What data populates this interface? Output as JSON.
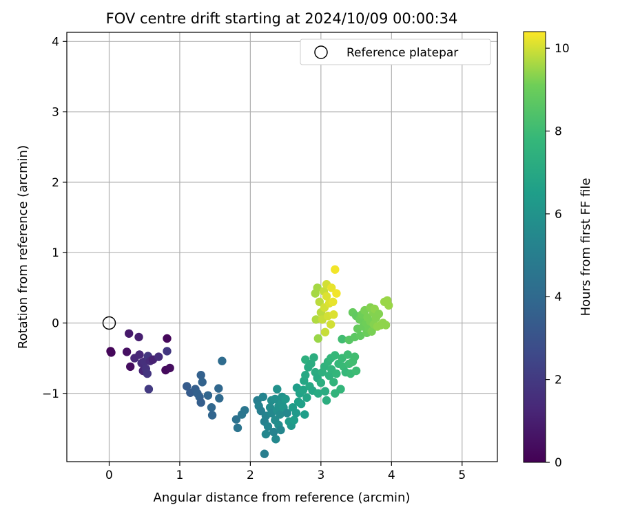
{
  "chart_data": {
    "type": "scatter",
    "title": "FOV centre drift starting at 2024/10/09 00:00:34",
    "xlabel": "Angular distance from reference (arcmin)",
    "ylabel": "Rotation from reference (arcmin)",
    "xlim": [
      -0.6,
      5.5
    ],
    "ylim": [
      -1.97,
      4.13
    ],
    "xticks": [
      0,
      1,
      2,
      3,
      4,
      5
    ],
    "yticks": [
      -1,
      0,
      1,
      2,
      3,
      4
    ],
    "grid": true,
    "legend": {
      "position": "top-right",
      "entries": [
        "Reference platepar"
      ]
    },
    "reference_point": {
      "x": 0,
      "y": 0,
      "marker": "open-circle",
      "label": "Reference platepar"
    },
    "colorbar": {
      "label": "Hours from first FF file",
      "colormap": "viridis",
      "range": [
        0,
        10.4
      ],
      "ticks": [
        0,
        2,
        4,
        6,
        8,
        10
      ]
    },
    "series": [
      {
        "columns": [
          "x",
          "y",
          "hours"
        ],
        "points": [
          [
            0.02,
            -0.4,
            0.1
          ],
          [
            0.03,
            -0.42,
            0.2
          ],
          [
            0.25,
            -0.41,
            0.5
          ],
          [
            0.28,
            -0.15,
            0.8
          ],
          [
            0.3,
            -0.62,
            0.4
          ],
          [
            0.42,
            -0.2,
            1.0
          ],
          [
            0.43,
            -0.45,
            1.3
          ],
          [
            0.46,
            -0.57,
            1.5
          ],
          [
            0.48,
            -0.68,
            1.2
          ],
          [
            0.5,
            -0.55,
            1.6
          ],
          [
            0.52,
            -0.65,
            1.7
          ],
          [
            0.54,
            -0.72,
            1.8
          ],
          [
            0.55,
            -0.47,
            1.9
          ],
          [
            0.56,
            -0.94,
            2.0
          ],
          [
            0.58,
            -0.54,
            1.4
          ],
          [
            0.62,
            -0.52,
            1.1
          ],
          [
            0.7,
            -0.48,
            1.5
          ],
          [
            0.8,
            -0.67,
            0.3
          ],
          [
            0.82,
            -0.22,
            0.2
          ],
          [
            0.82,
            -0.4,
            1.9
          ],
          [
            0.86,
            -0.64,
            0.4
          ],
          [
            0.36,
            -0.5,
            1.3
          ],
          [
            1.1,
            -0.9,
            3.4
          ],
          [
            1.15,
            -0.99,
            3.4
          ],
          [
            1.22,
            -0.94,
            3.5
          ],
          [
            1.25,
            -1.0,
            3.6
          ],
          [
            1.28,
            -1.05,
            3.6
          ],
          [
            1.3,
            -1.13,
            3.5
          ],
          [
            1.3,
            -0.74,
            3.6
          ],
          [
            1.32,
            -0.84,
            3.7
          ],
          [
            1.4,
            -1.03,
            3.8
          ],
          [
            1.45,
            -1.2,
            3.9
          ],
          [
            1.46,
            -1.31,
            3.8
          ],
          [
            1.55,
            -0.93,
            3.9
          ],
          [
            1.56,
            -1.07,
            4.0
          ],
          [
            1.6,
            -0.54,
            4.1
          ],
          [
            1.8,
            -1.37,
            4.4
          ],
          [
            1.82,
            -1.49,
            4.5
          ],
          [
            1.88,
            -1.3,
            4.6
          ],
          [
            1.92,
            -1.24,
            4.6
          ],
          [
            2.1,
            -1.1,
            5.0
          ],
          [
            2.12,
            -1.18,
            5.2
          ],
          [
            2.15,
            -1.25,
            5.0
          ],
          [
            2.18,
            -1.05,
            5.3
          ],
          [
            2.2,
            -1.86,
            5.0
          ],
          [
            2.2,
            -1.4,
            5.1
          ],
          [
            2.22,
            -1.32,
            5.2
          ],
          [
            2.22,
            -1.58,
            5.4
          ],
          [
            2.25,
            -1.47,
            5.3
          ],
          [
            2.28,
            -1.2,
            5.6
          ],
          [
            2.3,
            -1.28,
            5.5
          ],
          [
            2.3,
            -1.1,
            5.7
          ],
          [
            2.33,
            -1.55,
            5.2
          ],
          [
            2.35,
            -1.08,
            5.8
          ],
          [
            2.35,
            -1.38,
            5.6
          ],
          [
            2.36,
            -1.65,
            5.5
          ],
          [
            2.38,
            -0.94,
            5.9
          ],
          [
            2.38,
            -1.24,
            5.8
          ],
          [
            2.4,
            -1.45,
            5.7
          ],
          [
            2.4,
            -1.18,
            5.9
          ],
          [
            2.42,
            -1.3,
            5.6
          ],
          [
            2.43,
            -1.52,
            5.4
          ],
          [
            2.45,
            -1.13,
            6.0
          ],
          [
            2.45,
            -1.05,
            5.9
          ],
          [
            2.47,
            -1.2,
            6.1
          ],
          [
            2.5,
            -1.08,
            6.2
          ],
          [
            2.52,
            -1.28,
            5.5
          ],
          [
            2.55,
            -1.4,
            6.3
          ],
          [
            2.58,
            -1.46,
            6.2
          ],
          [
            2.6,
            -1.2,
            6.4
          ],
          [
            2.62,
            -1.38,
            6.5
          ],
          [
            2.65,
            -1.28,
            6.3
          ],
          [
            2.66,
            -0.92,
            6.5
          ],
          [
            2.68,
            -1.12,
            6.6
          ],
          [
            2.7,
            -1.0,
            6.7
          ],
          [
            2.72,
            -1.15,
            6.6
          ],
          [
            2.75,
            -0.95,
            6.8
          ],
          [
            2.76,
            -0.82,
            6.9
          ],
          [
            2.77,
            -1.3,
            6.5
          ],
          [
            2.78,
            -0.74,
            7.0
          ],
          [
            2.78,
            -0.52,
            7.4
          ],
          [
            2.8,
            -1.06,
            6.8
          ],
          [
            2.82,
            -0.63,
            7.1
          ],
          [
            2.84,
            -0.9,
            7.0
          ],
          [
            2.86,
            -0.58,
            7.2
          ],
          [
            2.88,
            -0.96,
            6.9
          ],
          [
            2.9,
            -0.49,
            7.3
          ],
          [
            2.92,
            -0.7,
            7.2
          ],
          [
            2.95,
            -0.78,
            7.1
          ],
          [
            2.96,
            -1.0,
            7.1
          ],
          [
            3.0,
            -0.85,
            7.3
          ],
          [
            3.02,
            -0.7,
            7.4
          ],
          [
            3.05,
            -0.62,
            7.5
          ],
          [
            3.06,
            -0.97,
            7.2
          ],
          [
            3.08,
            -1.1,
            7.3
          ],
          [
            3.1,
            -0.55,
            7.6
          ],
          [
            3.12,
            -0.75,
            7.5
          ],
          [
            3.14,
            -0.5,
            7.7
          ],
          [
            3.15,
            -0.66,
            7.6
          ],
          [
            3.18,
            -0.84,
            7.6
          ],
          [
            3.2,
            -0.46,
            7.8
          ],
          [
            3.22,
            -0.72,
            7.7
          ],
          [
            3.25,
            -0.58,
            7.8
          ],
          [
            3.28,
            -0.94,
            7.7
          ],
          [
            3.3,
            -0.5,
            7.9
          ],
          [
            3.3,
            -0.23,
            8.1
          ],
          [
            3.32,
            -0.62,
            7.9
          ],
          [
            3.35,
            -0.7,
            7.8
          ],
          [
            3.38,
            -0.45,
            8.0
          ],
          [
            3.4,
            -0.58,
            8.0
          ],
          [
            3.42,
            -0.72,
            7.9
          ],
          [
            3.45,
            -0.55,
            8.1
          ],
          [
            3.48,
            -0.48,
            8.1
          ],
          [
            3.5,
            -0.68,
            8.0
          ],
          [
            3.2,
            -1.0,
            7.6
          ],
          [
            3.4,
            -0.24,
            8.6
          ],
          [
            3.45,
            0.15,
            8.9
          ],
          [
            3.48,
            -0.2,
            8.7
          ],
          [
            3.5,
            0.1,
            8.8
          ],
          [
            3.52,
            -0.08,
            8.9
          ],
          [
            3.55,
            0.05,
            9.0
          ],
          [
            3.56,
            -0.18,
            8.8
          ],
          [
            3.58,
            0.12,
            9.1
          ],
          [
            3.6,
            -0.05,
            9.0
          ],
          [
            3.62,
            0.18,
            9.2
          ],
          [
            3.64,
            0.0,
            9.1
          ],
          [
            3.65,
            -0.14,
            9.0
          ],
          [
            3.66,
            0.08,
            9.2
          ],
          [
            3.68,
            -0.08,
            9.1
          ],
          [
            3.7,
            0.22,
            9.3
          ],
          [
            3.7,
            0.02,
            9.2
          ],
          [
            3.72,
            -0.12,
            9.2
          ],
          [
            3.74,
            0.15,
            9.3
          ],
          [
            3.75,
            -0.02,
            9.3
          ],
          [
            3.76,
            0.2,
            9.4
          ],
          [
            3.78,
            0.07,
            9.3
          ],
          [
            3.8,
            -0.05,
            9.4
          ],
          [
            3.82,
            0.13,
            9.3
          ],
          [
            3.85,
            -0.03,
            9.4
          ],
          [
            3.88,
            0.0,
            9.4
          ],
          [
            3.9,
            0.3,
            9.5
          ],
          [
            3.92,
            -0.03,
            9.4
          ],
          [
            3.94,
            0.32,
            9.5
          ],
          [
            3.96,
            0.25,
            9.5
          ],
          [
            2.92,
            0.42,
            9.6
          ],
          [
            2.93,
            0.05,
            9.7
          ],
          [
            2.95,
            0.5,
            9.6
          ],
          [
            2.96,
            -0.22,
            9.5
          ],
          [
            2.98,
            0.3,
            9.8
          ],
          [
            3.0,
            0.15,
            9.8
          ],
          [
            3.02,
            0.05,
            9.9
          ],
          [
            3.04,
            0.45,
            9.9
          ],
          [
            3.05,
            0.22,
            10.0
          ],
          [
            3.06,
            -0.13,
            9.9
          ],
          [
            3.08,
            0.55,
            10.0
          ],
          [
            3.08,
            0.38,
            10.1
          ],
          [
            3.1,
            0.1,
            10.0
          ],
          [
            3.12,
            0.28,
            10.1
          ],
          [
            3.15,
            0.5,
            10.2
          ],
          [
            3.17,
            0.3,
            10.2
          ],
          [
            3.18,
            0.12,
            10.1
          ],
          [
            3.2,
            0.76,
            10.3
          ],
          [
            3.22,
            0.42,
            10.3
          ],
          [
            3.14,
            -0.02,
            10.0
          ]
        ]
      }
    ]
  }
}
